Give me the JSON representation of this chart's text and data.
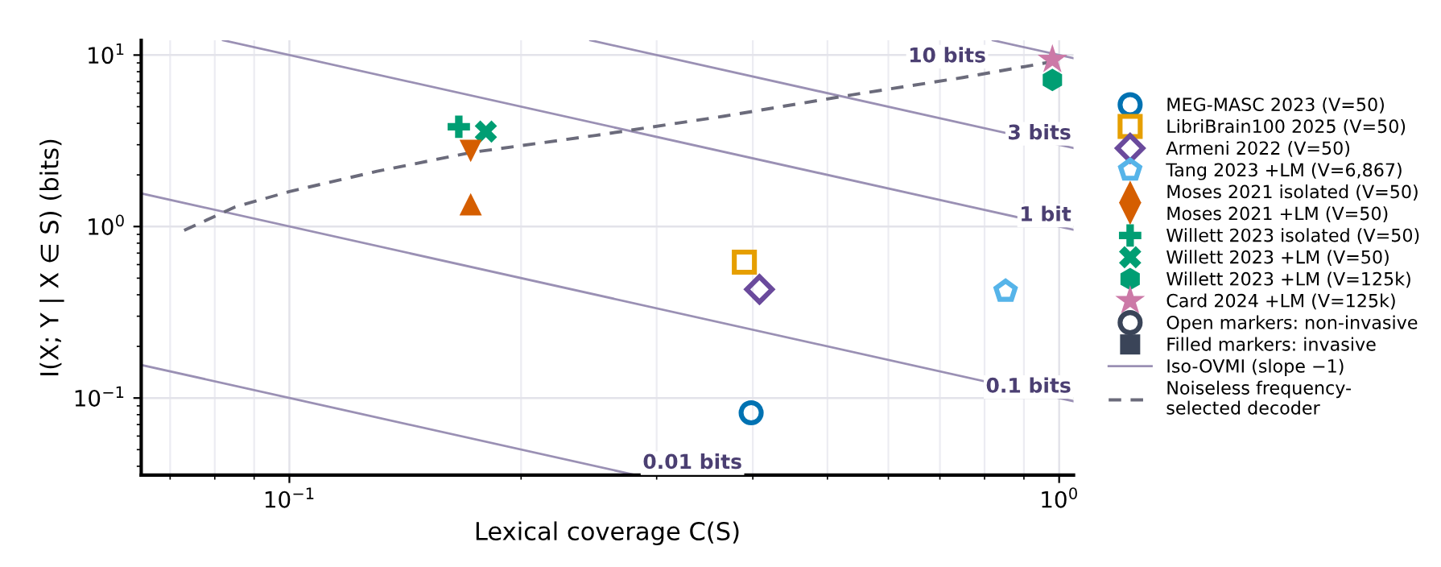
{
  "chart_data": {
    "type": "scatter",
    "xlabel": "Lexical coverage C(S)",
    "ylabel": "I(X; Y | X ∈ S) (bits)",
    "log": "xy",
    "grid": true,
    "legend": "right",
    "xlim": [
      0.0642,
      1.044
    ],
    "ylim": [
      0.0355,
      12.2
    ],
    "xticks": [
      {
        "value": 0.1,
        "label": "10$^{−1}$"
      },
      {
        "value": 1,
        "label": "10$^{0}$"
      }
    ],
    "yticks": [
      {
        "value": 0.1,
        "label": "10$^{−1}$"
      },
      {
        "value": 1,
        "label": "10$^{0}$"
      },
      {
        "value": 10,
        "label": "10$^{1}$"
      }
    ],
    "series": [
      {
        "name": "MEG-MASC 2023 (V=50)",
        "color": "#0072b2",
        "x": [
          0.398
        ],
        "values": [
          0.082
        ]
      },
      {
        "name": "LibriBrain100 2025 (V=50)",
        "color": "#e69f00",
        "x": [
          0.39
        ],
        "values": [
          0.62
        ]
      },
      {
        "name": "Armeni 2022 (V=50)",
        "color": "#6a4a9c",
        "x": [
          0.408
        ],
        "values": [
          0.43
        ]
      },
      {
        "name": "Tang 2023 +LM (V=6,867)",
        "color": "#56b4e9",
        "x": [
          0.852
        ],
        "values": [
          0.42
        ]
      },
      {
        "name": "Moses 2021 isolated (V=50)",
        "color": "#d55e00",
        "x": [
          0.172
        ],
        "values": [
          1.35
        ]
      },
      {
        "name": "Moses 2021 +LM (V=50)",
        "color": "#d55e00",
        "x": [
          0.172
        ],
        "values": [
          2.76
        ]
      },
      {
        "name": "Willett 2023 isolated (V=50)",
        "color": "#009e73",
        "x": [
          0.166
        ],
        "values": [
          3.82
        ]
      },
      {
        "name": "Willett 2023 +LM (V=50)",
        "color": "#009e73",
        "x": [
          0.18
        ],
        "values": [
          3.58
        ]
      },
      {
        "name": "Willett 2023 +LM (V=125k)",
        "color": "#009e73",
        "x": [
          0.98
        ],
        "values": [
          7.16
        ]
      },
      {
        "name": "Card 2024 +LM (V=125k)",
        "color": "#cc79a7",
        "x": [
          0.98
        ],
        "values": [
          9.4
        ]
      },
      {
        "name": "Open markers: non-invasive",
        "color": "#3a4458"
      },
      {
        "name": "Filled markers: invasive",
        "color": "#3a4458"
      },
      {
        "name": "Iso-OVMI (slope −1)",
        "type": "line",
        "color": "#9a90b4",
        "line_style": "solid",
        "marker": "none",
        "x": [
          0.0642,
          0.282
        ],
        "values": [
          0.156,
          0.0355
        ]
      },
      {
        "type": "line",
        "color": "#9a90b4",
        "line_style": "solid",
        "marker": "none",
        "x": [
          0.0642,
          1.044
        ],
        "values": [
          1.56,
          0.0958
        ]
      },
      {
        "type": "line",
        "color": "#9a90b4",
        "line_style": "solid",
        "marker": "none",
        "x": [
          0.082,
          1.044
        ],
        "values": [
          12.2,
          0.958
        ]
      },
      {
        "type": "line",
        "color": "#9a90b4",
        "line_style": "solid",
        "marker": "none",
        "x": [
          0.246,
          1.044
        ],
        "values": [
          12.2,
          2.87
        ]
      },
      {
        "type": "line",
        "color": "#9a90b4",
        "line_style": "solid",
        "marker": "none",
        "x": [
          0.82,
          1.044
        ],
        "values": [
          12.2,
          9.58
        ]
      },
      {
        "name": "Noiseless frequency-\nselected decoder",
        "type": "line",
        "color": "#6b6b7b",
        "line_style": "dashed",
        "marker": "none",
        "x": [
          0.073,
          0.085,
          0.1,
          0.13,
          0.172,
          0.25,
          0.367,
          0.53,
          0.75,
          1.0
        ],
        "values": [
          0.95,
          1.3,
          1.6,
          2.1,
          2.7,
          3.4,
          4.4,
          5.8,
          7.4,
          9.3
        ]
      }
    ],
    "annotations": [
      {
        "text": "0.01 bits",
        "x": 0.282,
        "y": 0.0355
      },
      {
        "text": "0.1 bits",
        "x": 1.044,
        "y": 0.0958
      },
      {
        "text": "1 bit",
        "x": 1.044,
        "y": 0.958
      },
      {
        "text": "3 bits",
        "x": 1.044,
        "y": 2.87
      },
      {
        "text": "10 bits",
        "x": 0.82,
        "y": 12.2
      }
    ]
  }
}
